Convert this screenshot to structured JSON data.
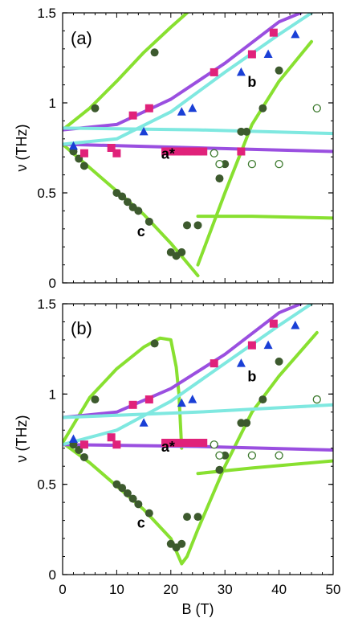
{
  "chart_data": [
    {
      "type": "scatter",
      "panel": "(a)",
      "xlabel": "",
      "ylabel": "ν (THz)",
      "xlim": [
        0,
        50
      ],
      "ylim": [
        0,
        1.5
      ],
      "yticks": [
        "0",
        "0.5",
        "1",
        "1.5"
      ],
      "annotations": [
        {
          "text": "a*",
          "x": 19.5,
          "y": 0.69
        },
        {
          "text": "b",
          "x": 35.0,
          "y": 1.09
        },
        {
          "text": "c",
          "x": 14.5,
          "y": 0.26
        }
      ],
      "series": [
        {
          "marker": "filled-circle",
          "color": "#3d5a2e",
          "points": [
            [
              2,
              0.73
            ],
            [
              3,
              0.69
            ],
            [
              4,
              0.65
            ],
            [
              6,
              0.97
            ],
            [
              10,
              0.5
            ],
            [
              11,
              0.48
            ],
            [
              12,
              0.45
            ],
            [
              13,
              0.42
            ],
            [
              14,
              0.4
            ],
            [
              16,
              0.34
            ],
            [
              17,
              1.28
            ],
            [
              20,
              0.17
            ],
            [
              21,
              0.15
            ],
            [
              22,
              0.17
            ],
            [
              23,
              0.32
            ],
            [
              25,
              0.32
            ],
            [
              29,
              0.58
            ],
            [
              30,
              0.66
            ],
            [
              33,
              0.84
            ],
            [
              34,
              0.84
            ],
            [
              37,
              0.97
            ],
            [
              40,
              1.18
            ]
          ]
        },
        {
          "marker": "square",
          "color": "#e0227a",
          "points": [
            [
              4,
              0.72
            ],
            [
              9,
              0.75
            ],
            [
              10,
              0.72
            ],
            [
              13,
              0.93
            ],
            [
              16,
              0.97
            ],
            [
              19,
              0.73
            ],
            [
              20,
              0.73
            ],
            [
              21,
              0.73
            ],
            [
              22,
              0.73
            ],
            [
              23,
              0.73
            ],
            [
              24,
              0.73
            ],
            [
              25,
              0.73
            ],
            [
              26,
              0.73
            ],
            [
              28,
              1.17
            ],
            [
              33,
              0.73
            ],
            [
              35,
              1.27
            ],
            [
              39,
              1.39
            ]
          ]
        },
        {
          "marker": "triangle",
          "color": "#1a3fd6",
          "points": [
            [
              2,
              0.76
            ],
            [
              15,
              0.84
            ],
            [
              22,
              0.95
            ],
            [
              24,
              0.97
            ],
            [
              33,
              1.17
            ],
            [
              38,
              1.27
            ],
            [
              43,
              1.38
            ]
          ]
        },
        {
          "marker": "open-circle",
          "color": "#3d7a2e",
          "points": [
            [
              28,
              0.72
            ],
            [
              29,
              0.66
            ],
            [
              35,
              0.66
            ],
            [
              40,
              0.66
            ],
            [
              47,
              0.97
            ]
          ]
        }
      ],
      "lines": [
        {
          "color": "#88e030",
          "points": [
            [
              0,
              0.85
            ],
            [
              5,
              0.97
            ],
            [
              10,
              1.12
            ],
            [
              15,
              1.28
            ],
            [
              20,
              1.42
            ],
            [
              23,
              1.5
            ]
          ]
        },
        {
          "color": "#88e030",
          "points": [
            [
              0,
              0.77
            ],
            [
              5,
              0.64
            ],
            [
              10,
              0.51
            ],
            [
              15,
              0.38
            ],
            [
              20,
              0.22
            ],
            [
              25,
              0.04
            ]
          ]
        },
        {
          "color": "#88e030",
          "points": [
            [
              25,
              0.1
            ],
            [
              30,
              0.5
            ],
            [
              35,
              0.88
            ],
            [
              40,
              1.12
            ],
            [
              46,
              1.34
            ]
          ]
        },
        {
          "color": "#88e030",
          "points": [
            [
              25,
              0.37
            ],
            [
              35,
              0.37
            ],
            [
              50,
              0.36
            ]
          ]
        },
        {
          "color": "#9a4fe0",
          "points": [
            [
              0,
              0.85
            ],
            [
              10,
              0.88
            ],
            [
              20,
              1.02
            ],
            [
              30,
              1.22
            ],
            [
              40,
              1.45
            ],
            [
              44,
              1.5
            ]
          ]
        },
        {
          "color": "#9a4fe0",
          "points": [
            [
              0,
              0.77
            ],
            [
              25,
              0.75
            ],
            [
              50,
              0.73
            ]
          ]
        },
        {
          "color": "#7fe8e0",
          "points": [
            [
              0,
              0.77
            ],
            [
              10,
              0.8
            ],
            [
              20,
              0.95
            ],
            [
              30,
              1.17
            ],
            [
              40,
              1.38
            ],
            [
              46,
              1.5
            ]
          ]
        },
        {
          "color": "#7fe8e0",
          "points": [
            [
              0,
              0.86
            ],
            [
              25,
              0.85
            ],
            [
              50,
              0.83
            ]
          ]
        }
      ]
    },
    {
      "type": "scatter",
      "panel": "(b)",
      "xlabel": "B (T)",
      "ylabel": "ν (THz)",
      "xlim": [
        0,
        50
      ],
      "ylim": [
        0,
        1.5
      ],
      "xticks": [
        "0",
        "10",
        "20",
        "30",
        "40",
        "50"
      ],
      "yticks": [
        "0",
        "0.5",
        "1",
        "1.5"
      ],
      "annotations": [
        {
          "text": "a*",
          "x": 19.5,
          "y": 0.68
        },
        {
          "text": "b",
          "x": 35.0,
          "y": 1.07
        },
        {
          "text": "c",
          "x": 14.5,
          "y": 0.26
        }
      ],
      "series": [
        {
          "marker": "filled-circle",
          "color": "#3d5a2e",
          "points": [
            [
              2,
              0.72
            ],
            [
              3,
              0.69
            ],
            [
              4,
              0.65
            ],
            [
              6,
              0.97
            ],
            [
              10,
              0.5
            ],
            [
              11,
              0.48
            ],
            [
              12,
              0.45
            ],
            [
              13,
              0.42
            ],
            [
              14,
              0.39
            ],
            [
              16,
              0.34
            ],
            [
              17,
              1.28
            ],
            [
              20,
              0.17
            ],
            [
              21,
              0.15
            ],
            [
              22,
              0.17
            ],
            [
              23,
              0.32
            ],
            [
              25,
              0.32
            ],
            [
              29,
              0.58
            ],
            [
              30,
              0.66
            ],
            [
              33,
              0.84
            ],
            [
              34,
              0.84
            ],
            [
              37,
              0.97
            ],
            [
              40,
              1.18
            ]
          ]
        },
        {
          "marker": "square",
          "color": "#e0227a",
          "points": [
            [
              4,
              0.72
            ],
            [
              9,
              0.76
            ],
            [
              10,
              0.72
            ],
            [
              13,
              0.94
            ],
            [
              16,
              0.97
            ],
            [
              19,
              0.73
            ],
            [
              20,
              0.73
            ],
            [
              21,
              0.73
            ],
            [
              22,
              0.73
            ],
            [
              23,
              0.73
            ],
            [
              24,
              0.73
            ],
            [
              25,
              0.73
            ],
            [
              26,
              0.73
            ],
            [
              28,
              1.17
            ],
            [
              35,
              1.27
            ],
            [
              39,
              1.39
            ]
          ]
        },
        {
          "marker": "triangle",
          "color": "#1a3fd6",
          "points": [
            [
              2,
              0.75
            ],
            [
              15,
              0.84
            ],
            [
              22,
              0.95
            ],
            [
              24,
              0.97
            ],
            [
              33,
              1.17
            ],
            [
              38,
              1.27
            ],
            [
              43,
              1.38
            ]
          ]
        },
        {
          "marker": "open-circle",
          "color": "#3d7a2e",
          "points": [
            [
              28,
              0.72
            ],
            [
              29,
              0.66
            ],
            [
              35,
              0.66
            ],
            [
              40,
              0.66
            ],
            [
              47,
              0.97
            ]
          ]
        }
      ],
      "lines": [
        {
          "color": "#88e030",
          "points": [
            [
              0,
              0.73
            ],
            [
              5,
              0.98
            ],
            [
              10,
              1.14
            ],
            [
              15,
              1.26
            ],
            [
              18,
              1.31
            ],
            [
              20,
              1.3
            ],
            [
              21,
              1.15
            ],
            [
              21.5,
              1.0
            ],
            [
              22,
              0.7
            ]
          ]
        },
        {
          "color": "#88e030",
          "points": [
            [
              0,
              0.73
            ],
            [
              5,
              0.62
            ],
            [
              10,
              0.49
            ],
            [
              15,
              0.36
            ],
            [
              20,
              0.2
            ],
            [
              22,
              0.06
            ],
            [
              23,
              0.1
            ],
            [
              25,
              0.25
            ],
            [
              30,
              0.6
            ],
            [
              35,
              0.9
            ],
            [
              40,
              1.1
            ],
            [
              47,
              1.34
            ]
          ]
        },
        {
          "color": "#88e030",
          "points": [
            [
              25,
              0.56
            ],
            [
              35,
              0.59
            ],
            [
              50,
              0.63
            ]
          ]
        },
        {
          "color": "#9a4fe0",
          "points": [
            [
              0,
              0.87
            ],
            [
              10,
              0.9
            ],
            [
              20,
              1.03
            ],
            [
              30,
              1.22
            ],
            [
              40,
              1.45
            ],
            [
              44,
              1.5
            ]
          ]
        },
        {
          "color": "#9a4fe0",
          "points": [
            [
              0,
              0.72
            ],
            [
              25,
              0.71
            ],
            [
              50,
              0.69
            ]
          ]
        },
        {
          "color": "#7fe8e0",
          "points": [
            [
              0,
              0.72
            ],
            [
              10,
              0.8
            ],
            [
              20,
              0.96
            ],
            [
              30,
              1.17
            ],
            [
              40,
              1.38
            ],
            [
              46,
              1.5
            ]
          ]
        },
        {
          "color": "#7fe8e0",
          "points": [
            [
              0,
              0.87
            ],
            [
              25,
              0.9
            ],
            [
              50,
              0.94
            ]
          ]
        }
      ]
    }
  ]
}
